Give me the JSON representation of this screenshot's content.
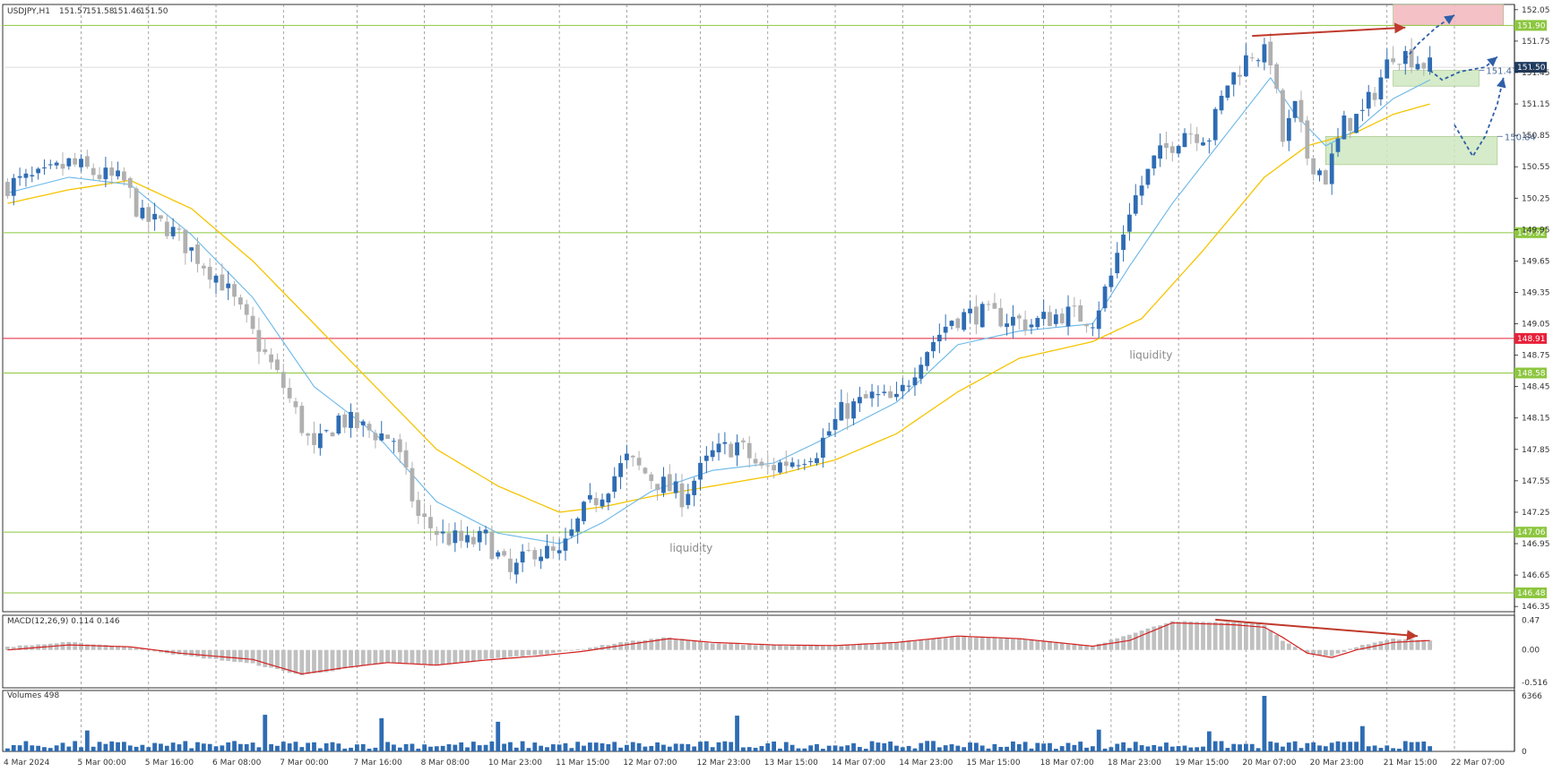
{
  "chart_data": {
    "type": "candlestick",
    "symbol": "USDJPY,H1",
    "ohlc_header": {
      "label": "USDJPY,H1",
      "open": "151.57",
      "high": "151.58",
      "low": "151.46",
      "close": "151.50"
    },
    "x_tick_labels": [
      "4 Mar 2024",
      "5 Mar 00:00",
      "5 Mar 16:00",
      "6 Mar 08:00",
      "7 Mar 00:00",
      "7 Mar 16:00",
      "8 Mar 08:00",
      "10 Mar 23:00",
      "11 Mar 15:00",
      "12 Mar 07:00",
      "12 Mar 23:00",
      "13 Mar 15:00",
      "14 Mar 07:00",
      "14 Mar 23:00",
      "15 Mar 15:00",
      "18 Mar 07:00",
      "18 Mar 23:00",
      "19 Mar 15:00",
      "20 Mar 07:00",
      "20 Mar 23:00",
      "21 Mar 15:00",
      "22 Mar 07:00"
    ],
    "price_axis": {
      "range": [
        146.3,
        152.1
      ],
      "ticks": [
        "152.05",
        "151.75",
        "151.45",
        "151.15",
        "150.85",
        "150.55",
        "150.25",
        "149.95",
        "149.65",
        "149.35",
        "149.05",
        "148.75",
        "148.45",
        "148.15",
        "147.85",
        "147.55",
        "147.25",
        "146.95",
        "146.65",
        "146.35"
      ]
    },
    "level_lines": [
      {
        "price": 151.9,
        "label": "151.90",
        "color": "#8cc63f"
      },
      {
        "price": 149.92,
        "label": "149.92",
        "color": "#8cc63f"
      },
      {
        "price": 148.91,
        "label": "148.91",
        "color": "#e8203a"
      },
      {
        "price": 148.58,
        "label": "148.58",
        "color": "#8cc63f"
      },
      {
        "price": 147.06,
        "label": "147.06",
        "color": "#8cc63f"
      },
      {
        "price": 146.48,
        "label": "146.48",
        "color": "#8cc63f"
      }
    ],
    "current_price": {
      "price": 151.5,
      "label": "151.50",
      "color": "#1f3a5f"
    },
    "close_path": [
      [
        0,
        150.38
      ],
      [
        6,
        150.45
      ],
      [
        10,
        150.58
      ],
      [
        15,
        150.47
      ],
      [
        19,
        150.4
      ],
      [
        22,
        150.05
      ],
      [
        26,
        149.98
      ],
      [
        30,
        149.75
      ],
      [
        35,
        149.45
      ],
      [
        41,
        148.85
      ],
      [
        45,
        148.45
      ],
      [
        50,
        147.82
      ],
      [
        54,
        148.15
      ],
      [
        58,
        148.05
      ],
      [
        63,
        147.95
      ],
      [
        67,
        147.2
      ],
      [
        71,
        147.02
      ],
      [
        75,
        146.95
      ],
      [
        78,
        147.0
      ],
      [
        82,
        146.65
      ],
      [
        86,
        146.9
      ],
      [
        90,
        146.82
      ],
      [
        94,
        147.25
      ],
      [
        97,
        147.45
      ],
      [
        101,
        147.75
      ],
      [
        105,
        147.58
      ],
      [
        110,
        147.4
      ],
      [
        115,
        147.8
      ],
      [
        119,
        147.9
      ],
      [
        123,
        147.65
      ],
      [
        128,
        147.75
      ],
      [
        132,
        147.85
      ],
      [
        136,
        148.2
      ],
      [
        141,
        148.35
      ],
      [
        145,
        148.3
      ],
      [
        149,
        148.75
      ],
      [
        154,
        149.1
      ],
      [
        158,
        149.15
      ],
      [
        163,
        149.1
      ],
      [
        167,
        149.05
      ],
      [
        172,
        149.15
      ],
      [
        177,
        149.1
      ],
      [
        180,
        149.5
      ],
      [
        183,
        150.15
      ],
      [
        187,
        150.6
      ],
      [
        192,
        150.9
      ],
      [
        196,
        150.85
      ],
      [
        199,
        151.35
      ],
      [
        203,
        151.65
      ],
      [
        206,
        151.6
      ],
      [
        208,
        150.8
      ],
      [
        210,
        151.1
      ],
      [
        212,
        150.65
      ],
      [
        215,
        150.45
      ],
      [
        218,
        150.95
      ],
      [
        221,
        151.05
      ],
      [
        224,
        151.4
      ],
      [
        226,
        151.65
      ],
      [
        229,
        151.6
      ],
      [
        232,
        151.5
      ]
    ],
    "ema_fast_path": [
      [
        0,
        150.3
      ],
      [
        10,
        150.45
      ],
      [
        20,
        150.38
      ],
      [
        30,
        149.9
      ],
      [
        40,
        149.3
      ],
      [
        50,
        148.45
      ],
      [
        60,
        148.0
      ],
      [
        70,
        147.35
      ],
      [
        80,
        147.05
      ],
      [
        90,
        146.95
      ],
      [
        97,
        147.15
      ],
      [
        105,
        147.45
      ],
      [
        115,
        147.65
      ],
      [
        125,
        147.72
      ],
      [
        135,
        148.0
      ],
      [
        145,
        148.3
      ],
      [
        155,
        148.85
      ],
      [
        165,
        148.98
      ],
      [
        177,
        149.05
      ],
      [
        183,
        149.6
      ],
      [
        190,
        150.2
      ],
      [
        200,
        150.95
      ],
      [
        206,
        151.4
      ],
      [
        210,
        151.05
      ],
      [
        215,
        150.75
      ],
      [
        220,
        150.9
      ],
      [
        226,
        151.2
      ],
      [
        232,
        151.38
      ]
    ],
    "ema_slow_path": [
      [
        0,
        150.2
      ],
      [
        10,
        150.33
      ],
      [
        20,
        150.42
      ],
      [
        30,
        150.15
      ],
      [
        40,
        149.65
      ],
      [
        50,
        149.05
      ],
      [
        60,
        148.45
      ],
      [
        70,
        147.85
      ],
      [
        80,
        147.5
      ],
      [
        90,
        147.25
      ],
      [
        97,
        147.3
      ],
      [
        105,
        147.4
      ],
      [
        115,
        147.5
      ],
      [
        125,
        147.6
      ],
      [
        135,
        147.75
      ],
      [
        145,
        148.0
      ],
      [
        155,
        148.4
      ],
      [
        165,
        148.72
      ],
      [
        177,
        148.88
      ],
      [
        185,
        149.1
      ],
      [
        195,
        149.75
      ],
      [
        205,
        150.45
      ],
      [
        212,
        150.75
      ],
      [
        220,
        150.88
      ],
      [
        226,
        151.05
      ],
      [
        232,
        151.15
      ]
    ],
    "annotations": [
      {
        "text": "liquidity",
        "bar": 108,
        "price": 147.02
      },
      {
        "text": "liquidity",
        "bar": 183,
        "price": 148.86
      }
    ],
    "zones": [
      {
        "name": "supply-zone",
        "bar_from": 226,
        "bar_to": 244,
        "price_high": 152.1,
        "price_low": 151.9,
        "color": "#f2b6bd",
        "label": ""
      },
      {
        "name": "demand-zone-upper",
        "bar_from": 226,
        "bar_to": 240,
        "price_high": 151.47,
        "price_low": 151.32,
        "color": "#cfe8c0",
        "label": "151.47"
      },
      {
        "name": "demand-zone-lower",
        "bar_from": 215,
        "bar_to": 243,
        "price_high": 150.84,
        "price_low": 150.57,
        "color": "#cfe8c0",
        "label": "150.84"
      }
    ],
    "trend_arrows": [
      {
        "from_bar": 203,
        "from_price": 151.8,
        "to_bar": 228,
        "to_price": 151.88,
        "color": "#c0392b"
      }
    ],
    "projection_arrows": [
      {
        "points": [
          [
            228,
            151.58
          ],
          [
            230,
            151.72
          ],
          [
            233,
            151.88
          ],
          [
            236,
            152.0
          ]
        ],
        "color": "#2f5fa8"
      },
      {
        "points": [
          [
            232,
            151.47
          ],
          [
            234,
            151.38
          ],
          [
            237,
            151.46
          ],
          [
            241,
            151.5
          ],
          [
            243,
            151.6
          ]
        ],
        "color": "#2f5fa8"
      },
      {
        "points": [
          [
            236,
            150.95
          ],
          [
            239,
            150.65
          ],
          [
            241,
            150.84
          ],
          [
            243,
            151.15
          ],
          [
            244,
            151.4
          ]
        ],
        "color": "#2f5fa8"
      }
    ],
    "macd": {
      "label": "MACD(12,26,9) 0.114 0.146",
      "y_ticks": [
        "0.47",
        "0.00",
        "-0.516"
      ],
      "range": [
        -0.6,
        0.55
      ],
      "hist_path": [
        [
          0,
          0.05
        ],
        [
          10,
          0.12
        ],
        [
          20,
          0.05
        ],
        [
          28,
          -0.08
        ],
        [
          40,
          -0.22
        ],
        [
          48,
          -0.4
        ],
        [
          55,
          -0.3
        ],
        [
          62,
          -0.2
        ],
        [
          70,
          -0.25
        ],
        [
          78,
          -0.15
        ],
        [
          86,
          -0.08
        ],
        [
          94,
          0.02
        ],
        [
          100,
          0.12
        ],
        [
          108,
          0.2
        ],
        [
          115,
          0.1
        ],
        [
          125,
          0.08
        ],
        [
          135,
          0.06
        ],
        [
          145,
          0.12
        ],
        [
          155,
          0.22
        ],
        [
          165,
          0.18
        ],
        [
          177,
          0.06
        ],
        [
          183,
          0.25
        ],
        [
          190,
          0.45
        ],
        [
          200,
          0.44
        ],
        [
          205,
          0.4
        ],
        [
          208,
          0.15
        ],
        [
          212,
          -0.05
        ],
        [
          216,
          -0.1
        ],
        [
          220,
          0.05
        ],
        [
          226,
          0.18
        ],
        [
          232,
          0.15
        ]
      ],
      "signal_path": [
        [
          0,
          0.0
        ],
        [
          10,
          0.08
        ],
        [
          20,
          0.05
        ],
        [
          28,
          -0.05
        ],
        [
          40,
          -0.15
        ],
        [
          48,
          -0.38
        ],
        [
          55,
          -0.28
        ],
        [
          62,
          -0.2
        ],
        [
          70,
          -0.24
        ],
        [
          78,
          -0.16
        ],
        [
          86,
          -0.1
        ],
        [
          94,
          -0.02
        ],
        [
          100,
          0.07
        ],
        [
          108,
          0.18
        ],
        [
          115,
          0.12
        ],
        [
          125,
          0.08
        ],
        [
          135,
          0.07
        ],
        [
          145,
          0.12
        ],
        [
          155,
          0.22
        ],
        [
          165,
          0.18
        ],
        [
          177,
          0.06
        ],
        [
          183,
          0.15
        ],
        [
          190,
          0.43
        ],
        [
          200,
          0.4
        ],
        [
          205,
          0.36
        ],
        [
          208,
          0.2
        ],
        [
          212,
          -0.05
        ],
        [
          216,
          -0.12
        ],
        [
          220,
          0.0
        ],
        [
          226,
          0.12
        ],
        [
          232,
          0.15
        ]
      ],
      "trend_arrow": {
        "from_bar": 197,
        "from_value": 0.48,
        "to_bar": 230,
        "to_value": 0.22,
        "color": "#c0392b"
      }
    },
    "volume": {
      "label": "Volumes 498",
      "y_ticks": [
        "6366",
        "0"
      ],
      "max": 6366,
      "spikes": [
        [
          13,
          2400
        ],
        [
          42,
          4200
        ],
        [
          61,
          3800
        ],
        [
          80,
          3400
        ],
        [
          119,
          4100
        ],
        [
          178,
          2500
        ],
        [
          196,
          2300
        ],
        [
          205,
          6366
        ],
        [
          221,
          2900
        ]
      ]
    },
    "grid": true,
    "colors": {
      "candle_up": "#2e6cb3",
      "candle_down": "#b0b0b0",
      "ema_fast": "#6ab7e8",
      "ema_slow": "#f5c400",
      "macd_hist": "#c0c0c0",
      "macd_signal": "#d42020",
      "volume_bar": "#2e6cb3",
      "grid": "#808080",
      "current_price_badge": "#1f3a5f"
    }
  }
}
